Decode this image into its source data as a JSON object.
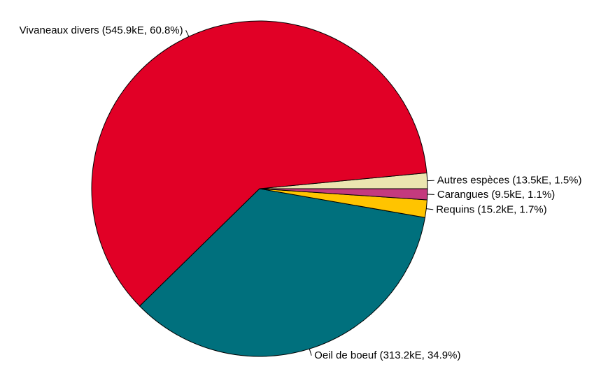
{
  "chart_data": {
    "type": "pie",
    "title": "",
    "slices": [
      {
        "name": "Autres espèces",
        "value": 13.5,
        "percent": 1.5,
        "label": "Autres espèces (13.5kE, 1.5%)",
        "color": "#ebe5b0"
      },
      {
        "name": "Vivaneaux divers",
        "value": 545.9,
        "percent": 60.8,
        "label": "Vivaneaux divers (545.9kE, 60.8%)",
        "color": "#e10026"
      },
      {
        "name": "Oeil de boeuf",
        "value": 313.2,
        "percent": 34.9,
        "label": "Oeil de boeuf (313.2kE, 34.9%)",
        "color": "#00707d"
      },
      {
        "name": "Requins",
        "value": 15.2,
        "percent": 1.7,
        "label": "Requins (15.2kE, 1.7%)",
        "color": "#ffc400"
      },
      {
        "name": "Carangues",
        "value": 9.5,
        "percent": 1.1,
        "label": "Carangues (9.5kE, 1.1%)",
        "color": "#c43a7e"
      }
    ],
    "direction": "counter-clockwise",
    "start_angle": "east",
    "border_color": "#000000"
  }
}
